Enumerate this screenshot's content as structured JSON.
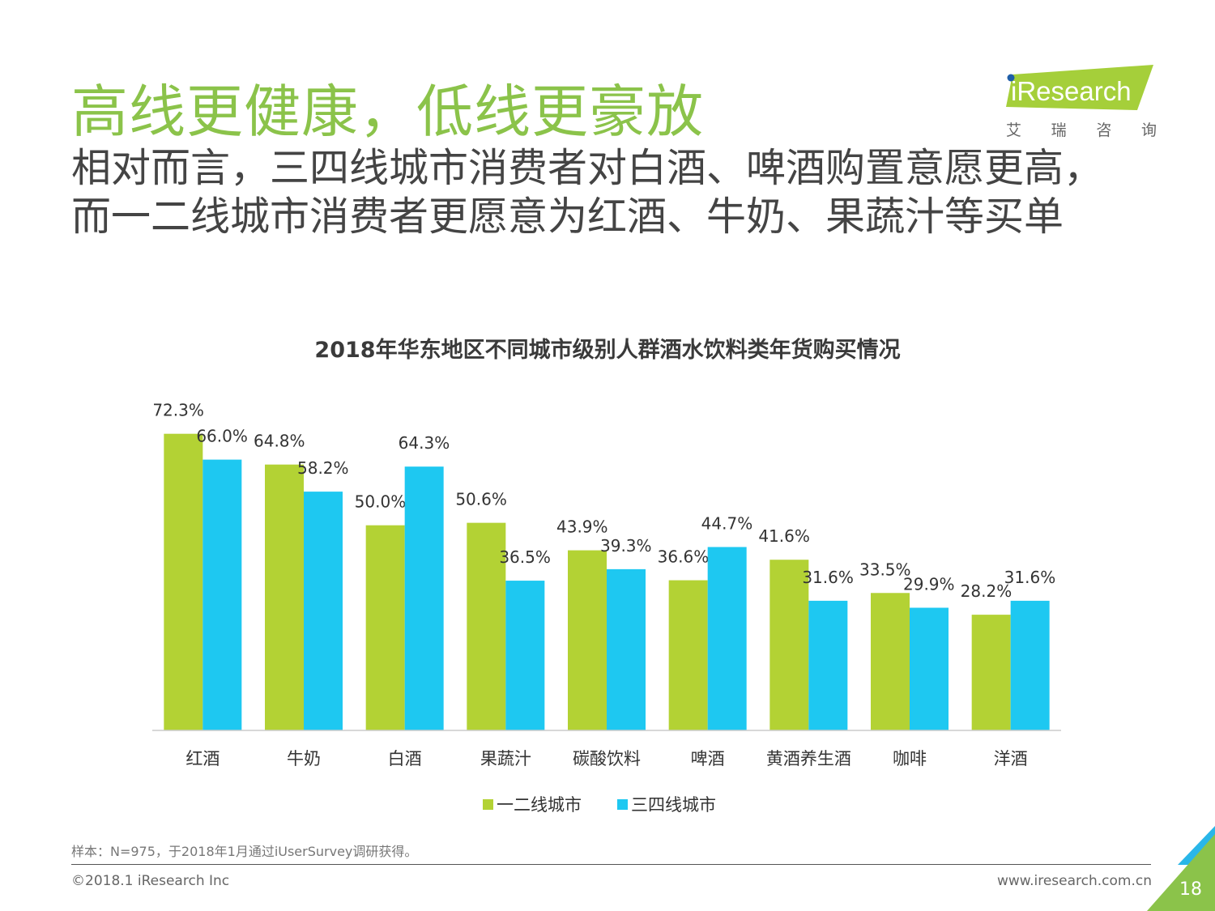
{
  "header": {
    "title": "高线更健康，低线更豪放",
    "subtitle_lines": [
      "相对而言，三四线城市消费者对白酒、啤酒购置意愿更高，",
      "而一二线城市消费者更愿意为红酒、牛奶、果蔬汁等买单"
    ]
  },
  "logo": {
    "wordmark": "iResearch",
    "cn": [
      "艾",
      "瑞",
      "咨",
      "询"
    ]
  },
  "colors": {
    "accent": "#8bc34a",
    "series1": "#b3d234",
    "series2": "#1ec8f1"
  },
  "chart_data": {
    "type": "bar",
    "title": "2018年华东地区不同城市级别人群酒水饮料类年货购买情况",
    "categories": [
      "红酒",
      "牛奶",
      "白酒",
      "果蔬汁",
      "碳酸饮料",
      "啤酒",
      "黄酒养生酒",
      "咖啡",
      "洋酒"
    ],
    "series": [
      {
        "name": "一二线城市",
        "values": [
          72.3,
          64.8,
          50.0,
          50.6,
          43.9,
          36.6,
          41.6,
          33.5,
          28.2
        ],
        "labels": [
          "72.3%",
          "64.8%",
          "50.0%",
          "50.6%",
          "43.9%",
          "36.6%",
          "41.6%",
          "33.5%",
          "28.2%"
        ]
      },
      {
        "name": "三四线城市",
        "values": [
          66.0,
          58.2,
          64.3,
          36.5,
          39.3,
          44.7,
          31.6,
          29.9,
          31.6
        ],
        "labels": [
          "66.0%",
          "58.2%",
          "64.3%",
          "36.5%",
          "39.3%",
          "44.7%",
          "31.6%",
          "29.9%",
          "31.6%"
        ]
      }
    ],
    "ylim": [
      0,
      75
    ],
    "legend": "bottom",
    "grid": false
  },
  "footer": {
    "note": "样本：N=975，于2018年1月通过iUserSurvey调研获得。",
    "copyright": "©2018.1 iResearch Inc",
    "website": "www.iresearch.com.cn",
    "page": "18"
  }
}
